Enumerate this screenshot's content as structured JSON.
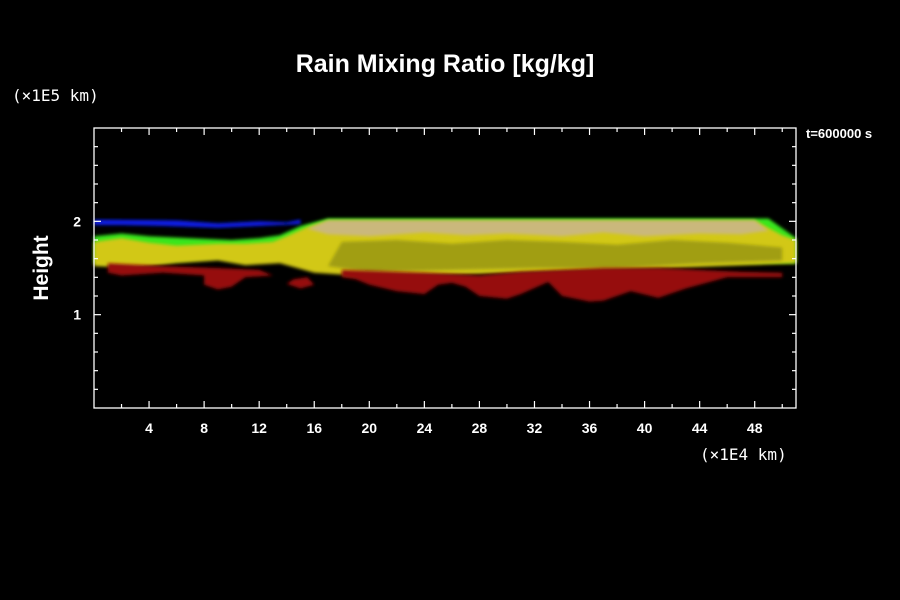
{
  "chart_data": {
    "type": "heatmap",
    "title": "Rain Mixing Ratio [kg/kg]",
    "ylabel": "Height",
    "y_unit": "(×1E5 km)",
    "x_unit": "(×1E4 km)",
    "time_label": "t=600000 s",
    "xlim": [
      0,
      51
    ],
    "ylim": [
      0,
      3
    ],
    "x_ticks": [
      4,
      8,
      12,
      16,
      20,
      24,
      28,
      32,
      36,
      40,
      44,
      48
    ],
    "y_ticks": [
      1,
      2
    ],
    "x_minor_step": 2,
    "y_minor_step": 0.2,
    "colors": {
      "background": "#000000",
      "blue": "#0a1ee6",
      "green": "#37e61e",
      "yellow": "#d2c814",
      "olive": "#8c8c14",
      "red": "#960a0a",
      "beige": "#c8b496"
    },
    "layers": [
      {
        "color": "blue",
        "points": [
          [
            0,
            2.02
          ],
          [
            6,
            2.01
          ],
          [
            9,
            1.98
          ],
          [
            12,
            2.0
          ],
          [
            14,
            1.99
          ],
          [
            15,
            2.02
          ],
          [
            15,
            1.97
          ],
          [
            12,
            1.95
          ],
          [
            9,
            1.93
          ],
          [
            5,
            1.95
          ],
          [
            2,
            1.96
          ],
          [
            0,
            1.96
          ]
        ]
      },
      {
        "color": "green",
        "points": [
          [
            0,
            1.84
          ],
          [
            2,
            1.87
          ],
          [
            4,
            1.84
          ],
          [
            7,
            1.82
          ],
          [
            10,
            1.8
          ],
          [
            12,
            1.82
          ],
          [
            13.5,
            1.85
          ],
          [
            15,
            1.95
          ],
          [
            17,
            2.03
          ],
          [
            49,
            2.03
          ],
          [
            51,
            1.82
          ],
          [
            51,
            1.55
          ],
          [
            13.5,
            1.62
          ],
          [
            11,
            1.58
          ],
          [
            9,
            1.62
          ],
          [
            6,
            1.58
          ],
          [
            3,
            1.55
          ],
          [
            0,
            1.55
          ]
        ]
      },
      {
        "color": "yellow",
        "points": [
          [
            0,
            1.78
          ],
          [
            2,
            1.82
          ],
          [
            4,
            1.77
          ],
          [
            6,
            1.74
          ],
          [
            9,
            1.76
          ],
          [
            11,
            1.76
          ],
          [
            13,
            1.78
          ],
          [
            14,
            1.84
          ],
          [
            15.5,
            1.94
          ],
          [
            17,
            2.01
          ],
          [
            48,
            2.01
          ],
          [
            50,
            1.85
          ],
          [
            51,
            1.8
          ],
          [
            51,
            1.55
          ],
          [
            42,
            1.5
          ],
          [
            36,
            1.47
          ],
          [
            31,
            1.45
          ],
          [
            27,
            1.43
          ],
          [
            23,
            1.42
          ],
          [
            19,
            1.42
          ],
          [
            16,
            1.45
          ],
          [
            13.5,
            1.55
          ],
          [
            11,
            1.53
          ],
          [
            9,
            1.58
          ],
          [
            6,
            1.55
          ],
          [
            3,
            1.5
          ],
          [
            0,
            1.52
          ]
        ]
      },
      {
        "color": "olive",
        "points": [
          [
            18,
            1.78
          ],
          [
            22,
            1.8
          ],
          [
            26,
            1.76
          ],
          [
            30,
            1.8
          ],
          [
            34,
            1.78
          ],
          [
            38,
            1.75
          ],
          [
            42,
            1.8
          ],
          [
            46,
            1.77
          ],
          [
            50,
            1.72
          ],
          [
            50,
            1.58
          ],
          [
            44,
            1.55
          ],
          [
            38,
            1.5
          ],
          [
            32,
            1.5
          ],
          [
            26,
            1.48
          ],
          [
            20,
            1.46
          ],
          [
            17,
            1.52
          ]
        ]
      },
      {
        "color": "beige",
        "points": [
          [
            17,
            2.01
          ],
          [
            48,
            2.01
          ],
          [
            49,
            1.9
          ],
          [
            47,
            1.86
          ],
          [
            44,
            1.87
          ],
          [
            40,
            1.84
          ],
          [
            37,
            1.88
          ],
          [
            34,
            1.84
          ],
          [
            30,
            1.87
          ],
          [
            27,
            1.85
          ],
          [
            24,
            1.88
          ],
          [
            20,
            1.84
          ],
          [
            17,
            1.86
          ],
          [
            15.5,
            1.92
          ]
        ]
      },
      {
        "color": "red",
        "points": [
          [
            1,
            1.55
          ],
          [
            5,
            1.52
          ],
          [
            9,
            1.5
          ],
          [
            12,
            1.48
          ],
          [
            13,
            1.42
          ],
          [
            11,
            1.4
          ],
          [
            10,
            1.3
          ],
          [
            9,
            1.27
          ],
          [
            8,
            1.32
          ],
          [
            8,
            1.42
          ],
          [
            5,
            1.45
          ],
          [
            2,
            1.42
          ],
          [
            1,
            1.45
          ]
        ]
      },
      {
        "color": "red",
        "points": [
          [
            14.5,
            1.38
          ],
          [
            15.5,
            1.4
          ],
          [
            16,
            1.32
          ],
          [
            15,
            1.28
          ],
          [
            14,
            1.33
          ]
        ]
      },
      {
        "color": "red",
        "points": [
          [
            18,
            1.48
          ],
          [
            24,
            1.45
          ],
          [
            28,
            1.42
          ],
          [
            31,
            1.46
          ],
          [
            34,
            1.48
          ],
          [
            37,
            1.5
          ],
          [
            41,
            1.5
          ],
          [
            44,
            1.48
          ],
          [
            47,
            1.46
          ],
          [
            50,
            1.45
          ],
          [
            50,
            1.4
          ],
          [
            46,
            1.4
          ],
          [
            43,
            1.28
          ],
          [
            41,
            1.18
          ],
          [
            39,
            1.25
          ],
          [
            37,
            1.15
          ],
          [
            36,
            1.14
          ],
          [
            34,
            1.2
          ],
          [
            33,
            1.35
          ],
          [
            31,
            1.22
          ],
          [
            30,
            1.17
          ],
          [
            28,
            1.2
          ],
          [
            27,
            1.3
          ],
          [
            26,
            1.34
          ],
          [
            25,
            1.32
          ],
          [
            24,
            1.22
          ],
          [
            22,
            1.25
          ],
          [
            20,
            1.32
          ],
          [
            19,
            1.38
          ],
          [
            18,
            1.4
          ]
        ]
      }
    ]
  }
}
